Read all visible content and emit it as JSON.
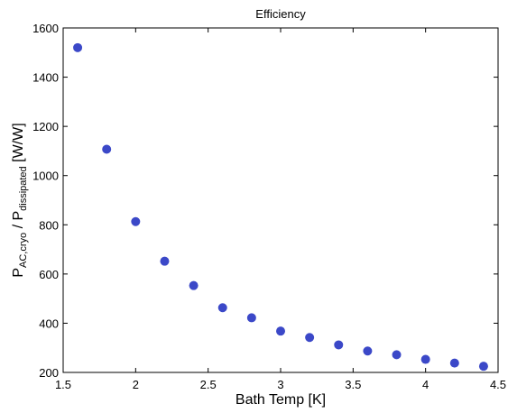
{
  "chart_data": {
    "type": "scatter",
    "title": "Efficiency",
    "xlabel": "Bath Temp [K]",
    "ylabel": {
      "p1": "P",
      "sub1": "AC,cryo",
      "sep": " / P",
      "sub2": "dissipated",
      "unit": " [W/W]"
    },
    "xlim": [
      1.5,
      4.5
    ],
    "ylim": [
      200,
      1600
    ],
    "xticks": [
      1.5,
      2,
      2.5,
      3,
      3.5,
      4,
      4.5
    ],
    "xtick_labels": [
      "1.5",
      "2",
      "2.5",
      "3",
      "3.5",
      "4",
      "4.5"
    ],
    "yticks": [
      200,
      400,
      600,
      800,
      1000,
      1200,
      1400,
      1600
    ],
    "ytick_labels": [
      "200",
      "400",
      "600",
      "800",
      "1000",
      "1200",
      "1400",
      "1600"
    ],
    "grid": false,
    "marker_color": "#3b48c8",
    "x": [
      1.6,
      1.8,
      2.0,
      2.2,
      2.4,
      2.6,
      2.8,
      3.0,
      3.2,
      3.4,
      3.6,
      3.8,
      4.0,
      4.2,
      4.4
    ],
    "y": [
      1520,
      1107,
      813,
      652,
      553,
      463,
      422,
      368,
      342,
      312,
      287,
      272,
      253,
      238,
      225
    ]
  }
}
